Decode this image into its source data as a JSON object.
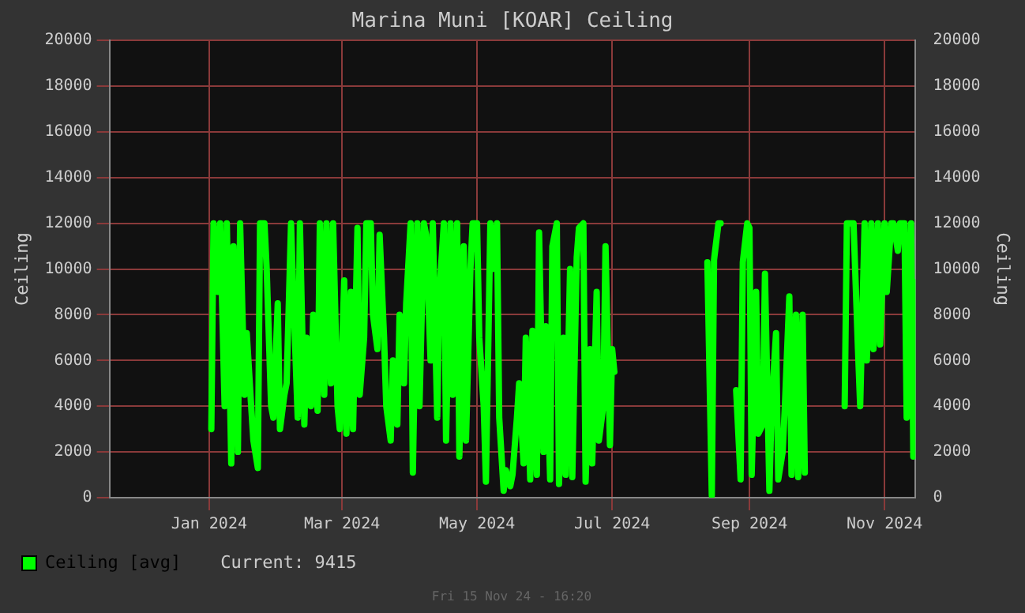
{
  "chart_data": {
    "type": "line",
    "title": "Marina Muni [KOAR] Ceiling",
    "ylabel": "Ceiling",
    "y2label": "Ceiling",
    "x": [
      "2024-01-02",
      "2024-01-03",
      "2024-01-05",
      "2024-01-06",
      "2024-01-08",
      "2024-01-09",
      "2024-01-11",
      "2024-01-12",
      "2024-01-14",
      "2024-01-15",
      "2024-01-17",
      "2024-01-18",
      "2024-01-20",
      "2024-01-21",
      "2024-01-23",
      "2024-01-24",
      "2024-01-26",
      "2024-01-27",
      "2024-01-29",
      "2024-01-30",
      "2024-02-01",
      "2024-02-02",
      "2024-02-04",
      "2024-02-05",
      "2024-02-07",
      "2024-02-08",
      "2024-02-10",
      "2024-02-11",
      "2024-02-13",
      "2024-02-14",
      "2024-02-16",
      "2024-02-17",
      "2024-02-19",
      "2024-02-20",
      "2024-02-22",
      "2024-02-23",
      "2024-02-25",
      "2024-02-26",
      "2024-02-28",
      "2024-02-29",
      "2024-03-02",
      "2024-03-03",
      "2024-03-05",
      "2024-03-06",
      "2024-03-08",
      "2024-03-09",
      "2024-03-11",
      "2024-03-12",
      "2024-03-14",
      "2024-03-15",
      "2024-03-17",
      "2024-03-18",
      "2024-03-20",
      "2024-03-21",
      "2024-03-23",
      "2024-03-24",
      "2024-03-26",
      "2024-03-27",
      "2024-03-29",
      "2024-03-30",
      "2024-04-01",
      "2024-04-02",
      "2024-04-04",
      "2024-04-05",
      "2024-04-07",
      "2024-04-08",
      "2024-04-10",
      "2024-04-11",
      "2024-04-13",
      "2024-04-14",
      "2024-04-16",
      "2024-04-17",
      "2024-04-19",
      "2024-04-20",
      "2024-04-22",
      "2024-04-23",
      "2024-04-25",
      "2024-04-26",
      "2024-04-28",
      "2024-04-29",
      "2024-05-01",
      "2024-05-02",
      "2024-05-04",
      "2024-05-05",
      "2024-05-07",
      "2024-05-08",
      "2024-05-10",
      "2024-05-11",
      "2024-05-13",
      "2024-05-14",
      "2024-05-16",
      "2024-05-17",
      "2024-05-19",
      "2024-05-20",
      "2024-05-22",
      "2024-05-23",
      "2024-05-25",
      "2024-05-26",
      "2024-05-28",
      "2024-05-29",
      "2024-05-31",
      "2024-06-01",
      "2024-06-03",
      "2024-06-04",
      "2024-06-06",
      "2024-06-07",
      "2024-06-09",
      "2024-06-10",
      "2024-06-12",
      "2024-06-13",
      "2024-06-15",
      "2024-06-16",
      "2024-06-18",
      "2024-06-19",
      "2024-06-21",
      "2024-06-22",
      "2024-06-24",
      "2024-06-25",
      "2024-06-27",
      "2024-06-28",
      "2024-06-30",
      "2024-07-01",
      "2024-07-02",
      "2024-07-03",
      "2024-08-13",
      "2024-08-15",
      "2024-08-16",
      "2024-08-18",
      "2024-08-19",
      "2024-08-20",
      "2024-08-26",
      "2024-08-28",
      "2024-08-29",
      "2024-08-31",
      "2024-09-01",
      "2024-09-02",
      "2024-09-04",
      "2024-09-05",
      "2024-09-07",
      "2024-09-08",
      "2024-09-10",
      "2024-09-11",
      "2024-09-13",
      "2024-09-14",
      "2024-09-16",
      "2024-09-17",
      "2024-09-19",
      "2024-09-20",
      "2024-09-22",
      "2024-09-23",
      "2024-09-25",
      "2024-09-26",
      "2024-09-27",
      "2024-10-14",
      "2024-10-15",
      "2024-10-17",
      "2024-10-18",
      "2024-10-20",
      "2024-10-21",
      "2024-10-23",
      "2024-10-24",
      "2024-10-26",
      "2024-10-27",
      "2024-10-29",
      "2024-10-30",
      "2024-11-01",
      "2024-11-02",
      "2024-11-04",
      "2024-11-05",
      "2024-11-07",
      "2024-11-08",
      "2024-11-10",
      "2024-11-11",
      "2024-11-13",
      "2024-11-14",
      "2024-11-15"
    ],
    "series": [
      {
        "name": "Ceiling [avg]",
        "color": "#00ff00",
        "values": [
          3000,
          12000,
          9000,
          12000,
          4000,
          12000,
          1500,
          11000,
          2000,
          12000,
          4500,
          7200,
          4000,
          2500,
          1300,
          12000,
          12000,
          10000,
          4000,
          3500,
          8500,
          3000,
          4500,
          5000,
          12000,
          9000,
          3500,
          12000,
          3200,
          7000,
          4000,
          8000,
          3800,
          12000,
          4500,
          12000,
          5000,
          12000,
          4000,
          3000,
          9500,
          2800,
          9000,
          3000,
          11800,
          4500,
          7000,
          12000,
          12000,
          8000,
          6500,
          11500,
          7000,
          4000,
          2500,
          6000,
          3200,
          8000,
          5000,
          8500,
          12000,
          1100,
          12000,
          4000,
          12000,
          11500,
          6000,
          12000,
          3500,
          9000,
          12000,
          2500,
          12000,
          4500,
          12000,
          1800,
          11000,
          2500,
          10000,
          12000,
          12000,
          7000,
          4000,
          700,
          12000,
          10000,
          12000,
          3500,
          300,
          1200,
          500,
          1000,
          3500,
          5000,
          1500,
          7000,
          800,
          7300,
          1000,
          11600,
          2000,
          7500,
          800,
          11000,
          12000,
          600,
          7000,
          1000,
          10000,
          900,
          10500,
          11800,
          12000,
          700,
          6500,
          1500,
          9000,
          2500,
          4000,
          11000,
          2300,
          6500,
          5500,
          null,
          10300,
          100,
          10400,
          12000,
          12000,
          null,
          4700,
          800,
          10300,
          12000,
          11800,
          1000,
          9000,
          2800,
          3200,
          9800,
          300,
          4000,
          7200,
          800,
          2000,
          4000,
          8800,
          1000,
          8000,
          900,
          8000,
          1100,
          null,
          4000,
          12000,
          12000,
          12000,
          6500,
          4000,
          12000,
          6000,
          12000,
          6500,
          12000,
          6700,
          12000,
          9000,
          12000,
          12000,
          10800,
          12000,
          12000,
          3500,
          12000,
          1800,
          9415
        ]
      }
    ],
    "xlim": [
      "2023-11-17",
      "2024-11-15"
    ],
    "xticks": [
      {
        "value": "2024-01-01",
        "label": "Jan 2024"
      },
      {
        "value": "2024-03-01",
        "label": "Mar 2024"
      },
      {
        "value": "2024-05-01",
        "label": "May 2024"
      },
      {
        "value": "2024-07-01",
        "label": "Jul 2024"
      },
      {
        "value": "2024-09-01",
        "label": "Sep 2024"
      },
      {
        "value": "2024-11-01",
        "label": "Nov 2024"
      }
    ],
    "ylim": [
      0,
      20000
    ],
    "yticks": [
      0,
      2000,
      4000,
      6000,
      8000,
      10000,
      12000,
      14000,
      16000,
      18000,
      20000
    ],
    "y2lim": [
      0,
      20000
    ],
    "y2ticks": [
      0,
      2000,
      4000,
      6000,
      8000,
      10000,
      12000,
      14000,
      16000,
      18000,
      20000
    ],
    "grid": true,
    "legend": "bottom left",
    "marker": "none",
    "annotations": [
      "Current: 9415",
      "Fri 15 Nov 24 - 16:20"
    ]
  }
}
